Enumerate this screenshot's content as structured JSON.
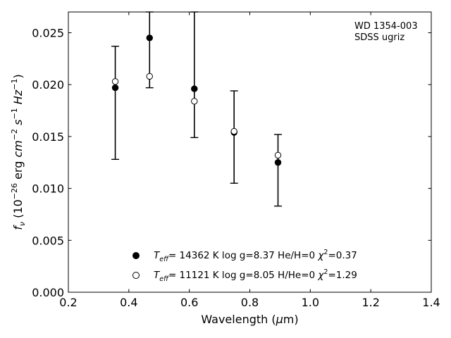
{
  "chart_data": {
    "type": "scatter",
    "xlabel": "Wavelength (μm)",
    "ylabel": "f_ν (10^-26 erg cm^-2 s^-1 Hz^-1)",
    "xlim": [
      0.2,
      1.4
    ],
    "ylim": [
      0.0,
      0.027
    ],
    "xticks": [
      "0.2",
      "0.4",
      "0.6",
      "0.8",
      "1.0",
      "1.2",
      "1.4"
    ],
    "yticks": [
      "0.000",
      "0.005",
      "0.010",
      "0.015",
      "0.020",
      "0.025"
    ],
    "annotation": [
      "WD 1354-003",
      "SDSS ugriz"
    ],
    "grid": false,
    "legend_position": "bottom-center",
    "observed": {
      "x": [
        0.3551,
        0.4686,
        0.6166,
        0.748,
        0.8932
      ],
      "y": [
        0.0196,
        0.0245,
        0.0196,
        0.0155,
        0.0125
      ],
      "err_low": [
        0.0128,
        0.0197,
        0.0149,
        0.0105,
        0.0083
      ],
      "err_high": [
        0.0237,
        0.027,
        0.027,
        0.0194,
        0.0152
      ]
    },
    "series": [
      {
        "name": "T_eff= 14362 K  log g=8.37  He/H=0  χ²=0.37",
        "marker": "filled",
        "x": [
          0.3551,
          0.4686,
          0.6166,
          0.748,
          0.8932
        ],
        "y": [
          0.0197,
          0.0245,
          0.0196,
          0.0154,
          0.0125
        ]
      },
      {
        "name": "T_eff= 11121 K  log g=8.05  H/He=0  χ²=1.29",
        "marker": "open",
        "x": [
          0.3551,
          0.4686,
          0.6166,
          0.748,
          0.8932
        ],
        "y": [
          0.0203,
          0.0208,
          0.0184,
          0.0155,
          0.0132
        ]
      }
    ]
  },
  "colors": {
    "marker_fill": "#000000",
    "open_fill": "#ffffff",
    "axis": "#000000"
  }
}
